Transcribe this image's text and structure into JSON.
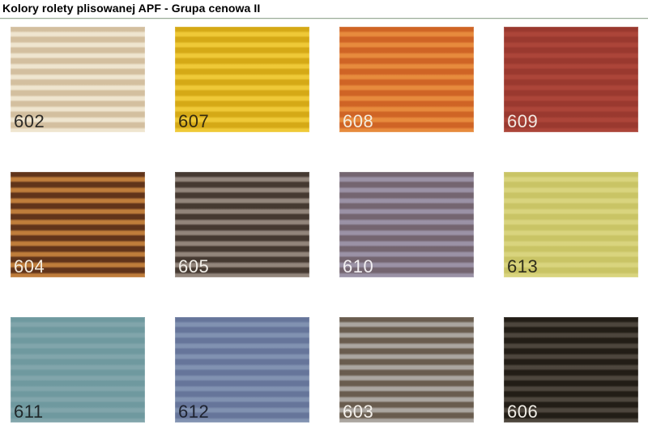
{
  "header": {
    "title": "Kolory rolety plisowanej APF - Grupa cenowa II"
  },
  "divider_color": "#9bab99",
  "swatches": [
    {
      "code": "602",
      "light": "#efe5cf",
      "dark": "#d3bf9f",
      "label_color": "#2e2c28"
    },
    {
      "code": "607",
      "light": "#efc937",
      "dark": "#d5a916",
      "label_color": "#352b10"
    },
    {
      "code": "608",
      "light": "#e78b3d",
      "dark": "#cf6425",
      "label_color": "#f4edde"
    },
    {
      "code": "609",
      "light": "#ac4539",
      "dark": "#9a392f",
      "label_color": "#f2e9e2"
    },
    {
      "code": "604",
      "light": "#bf7d3b",
      "dark": "#61341a",
      "label_color": "#f4ede0"
    },
    {
      "code": "605",
      "light": "#92857b",
      "dark": "#453931",
      "label_color": "#f2efe9"
    },
    {
      "code": "610",
      "light": "#9b92a6",
      "dark": "#746570",
      "label_color": "#f2eff2"
    },
    {
      "code": "613",
      "light": "#d9d47e",
      "dark": "#c9c465",
      "label_color": "#2f2e1c"
    },
    {
      "code": "611",
      "light": "#81a5ab",
      "dark": "#6f999f",
      "label_color": "#20282a"
    },
    {
      "code": "612",
      "light": "#8192b1",
      "dark": "#66759a",
      "label_color": "#1e2330"
    },
    {
      "code": "603",
      "light": "#aba6a0",
      "dark": "#695c4e",
      "label_color": "#f4f1ec"
    },
    {
      "code": "606",
      "light": "#4d463d",
      "dark": "#221d16",
      "label_color": "#efece5"
    }
  ]
}
